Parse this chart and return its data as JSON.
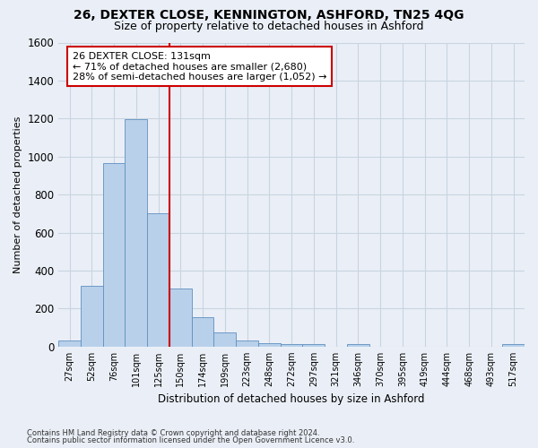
{
  "title1": "26, DEXTER CLOSE, KENNINGTON, ASHFORD, TN25 4QG",
  "title2": "Size of property relative to detached houses in Ashford",
  "xlabel": "Distribution of detached houses by size in Ashford",
  "ylabel": "Number of detached properties",
  "footnote1": "Contains HM Land Registry data © Crown copyright and database right 2024.",
  "footnote2": "Contains public sector information licensed under the Open Government Licence v3.0.",
  "categories": [
    "27sqm",
    "52sqm",
    "76sqm",
    "101sqm",
    "125sqm",
    "150sqm",
    "174sqm",
    "199sqm",
    "223sqm",
    "248sqm",
    "272sqm",
    "297sqm",
    "321sqm",
    "346sqm",
    "370sqm",
    "395sqm",
    "419sqm",
    "444sqm",
    "468sqm",
    "493sqm",
    "517sqm"
  ],
  "values": [
    30,
    320,
    965,
    1195,
    700,
    305,
    155,
    75,
    30,
    18,
    15,
    15,
    0,
    12,
    0,
    0,
    0,
    0,
    0,
    0,
    12
  ],
  "bar_color": "#b8d0ea",
  "bar_edge_color": "#6090c0",
  "grid_color": "#c8d4e0",
  "background_color": "#eaeff7",
  "red_line_color": "#cc0000",
  "annotation_text": "26 DEXTER CLOSE: 131sqm\n← 71% of detached houses are smaller (2,680)\n28% of semi-detached houses are larger (1,052) →",
  "annotation_box_color": "#ffffff",
  "annotation_box_edge": "#cc0000",
  "ylim": [
    0,
    1600
  ],
  "yticks": [
    0,
    200,
    400,
    600,
    800,
    1000,
    1200,
    1400,
    1600
  ]
}
